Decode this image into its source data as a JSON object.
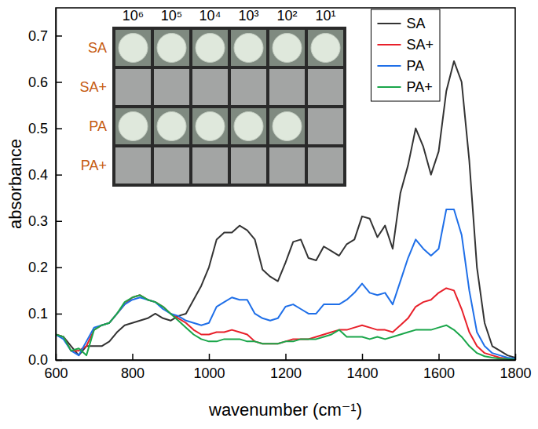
{
  "chart_data": {
    "type": "line",
    "x_label": "wavenumber (cm⁻¹)",
    "y_label": "absorbance",
    "x": [
      600,
      620,
      640,
      660,
      680,
      700,
      720,
      740,
      760,
      780,
      800,
      820,
      840,
      860,
      880,
      900,
      920,
      940,
      960,
      980,
      1000,
      1020,
      1040,
      1060,
      1080,
      1100,
      1120,
      1140,
      1160,
      1180,
      1200,
      1220,
      1240,
      1260,
      1280,
      1300,
      1320,
      1340,
      1360,
      1380,
      1400,
      1420,
      1440,
      1460,
      1480,
      1500,
      1520,
      1540,
      1560,
      1580,
      1600,
      1620,
      1640,
      1660,
      1680,
      1700,
      1720,
      1740,
      1760,
      1780,
      1800
    ],
    "xlim": [
      600,
      1800
    ],
    "xticks": [
      600,
      800,
      1000,
      1200,
      1400,
      1600,
      1800
    ],
    "ylim": [
      0,
      0.76
    ],
    "yticks": [
      {
        "value": 0,
        "label": "0.0"
      },
      0.1,
      0.2,
      0.3,
      0.4,
      0.5,
      0.6,
      0.7
    ],
    "legend": "top-right",
    "series": [
      {
        "name": "SA",
        "color": "#333333",
        "values": [
          0.055,
          0.05,
          0.03,
          0.01,
          0.03,
          0.03,
          0.03,
          0.04,
          0.06,
          0.075,
          0.08,
          0.085,
          0.09,
          0.1,
          0.09,
          0.085,
          0.095,
          0.1,
          0.13,
          0.16,
          0.2,
          0.26,
          0.275,
          0.275,
          0.29,
          0.28,
          0.26,
          0.195,
          0.18,
          0.17,
          0.21,
          0.255,
          0.26,
          0.22,
          0.215,
          0.245,
          0.235,
          0.225,
          0.25,
          0.26,
          0.31,
          0.305,
          0.265,
          0.29,
          0.24,
          0.36,
          0.42,
          0.5,
          0.46,
          0.4,
          0.45,
          0.58,
          0.645,
          0.6,
          0.43,
          0.2,
          0.08,
          0.03,
          0.02,
          0.01,
          0.005
        ]
      },
      {
        "name": "SA+",
        "color": "#e8202a",
        "values": [
          0.055,
          0.05,
          0.02,
          0.02,
          0.03,
          0.065,
          0.075,
          0.08,
          0.1,
          0.12,
          0.135,
          0.14,
          0.13,
          0.125,
          0.115,
          0.1,
          0.09,
          0.08,
          0.065,
          0.055,
          0.055,
          0.06,
          0.06,
          0.065,
          0.06,
          0.055,
          0.04,
          0.035,
          0.035,
          0.035,
          0.04,
          0.045,
          0.045,
          0.045,
          0.05,
          0.055,
          0.06,
          0.065,
          0.065,
          0.07,
          0.075,
          0.07,
          0.065,
          0.065,
          0.06,
          0.075,
          0.09,
          0.115,
          0.125,
          0.13,
          0.145,
          0.155,
          0.15,
          0.11,
          0.06,
          0.03,
          0.015,
          0.01,
          0.005,
          0.003,
          0.002
        ]
      },
      {
        "name": "PA",
        "color": "#1f6fe8",
        "values": [
          0.055,
          0.045,
          0.02,
          0.01,
          0.04,
          0.07,
          0.075,
          0.08,
          0.1,
          0.12,
          0.13,
          0.135,
          0.13,
          0.125,
          0.11,
          0.1,
          0.095,
          0.085,
          0.08,
          0.075,
          0.08,
          0.115,
          0.125,
          0.135,
          0.13,
          0.13,
          0.1,
          0.09,
          0.085,
          0.09,
          0.115,
          0.12,
          0.11,
          0.1,
          0.1,
          0.12,
          0.12,
          0.12,
          0.13,
          0.145,
          0.165,
          0.145,
          0.14,
          0.145,
          0.12,
          0.17,
          0.22,
          0.26,
          0.24,
          0.225,
          0.24,
          0.325,
          0.325,
          0.27,
          0.15,
          0.06,
          0.03,
          0.015,
          0.01,
          0.005,
          0.003
        ]
      },
      {
        "name": "PA+",
        "color": "#1aa64a",
        "values": [
          0.055,
          0.05,
          0.02,
          0.025,
          0.01,
          0.065,
          0.075,
          0.08,
          0.1,
          0.125,
          0.135,
          0.14,
          0.13,
          0.125,
          0.115,
          0.1,
          0.085,
          0.07,
          0.055,
          0.045,
          0.04,
          0.04,
          0.045,
          0.045,
          0.045,
          0.04,
          0.04,
          0.035,
          0.035,
          0.035,
          0.04,
          0.04,
          0.045,
          0.045,
          0.045,
          0.05,
          0.055,
          0.065,
          0.05,
          0.05,
          0.05,
          0.045,
          0.05,
          0.045,
          0.05,
          0.055,
          0.06,
          0.065,
          0.065,
          0.065,
          0.07,
          0.075,
          0.065,
          0.05,
          0.03,
          0.015,
          0.008,
          0.005,
          0.003,
          0.002,
          0.001
        ]
      }
    ],
    "inset": {
      "columns": [
        "10⁶",
        "10⁵",
        "10⁴",
        "10³",
        "10²",
        "10¹"
      ],
      "rows": [
        "SA",
        "SA+",
        "PA",
        "PA+"
      ],
      "growth": [
        [
          true,
          true,
          true,
          true,
          true,
          true
        ],
        [
          false,
          false,
          false,
          false,
          false,
          false
        ],
        [
          true,
          true,
          true,
          true,
          true,
          false
        ],
        [
          false,
          false,
          false,
          false,
          false,
          false
        ]
      ]
    }
  }
}
